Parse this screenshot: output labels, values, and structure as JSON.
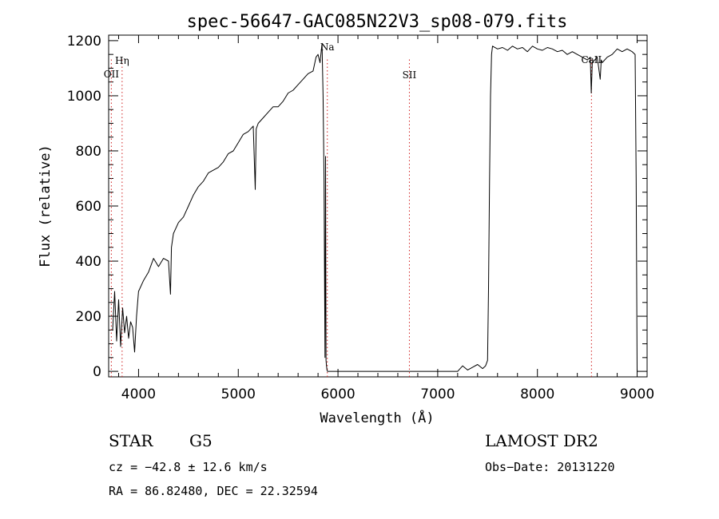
{
  "chart_data": {
    "type": "line",
    "title": "spec-56647-GAC085N22V3_sp08-079.fits",
    "xlabel": "Wavelength (Å)",
    "ylabel": "Flux (relative)",
    "xlim": [
      3700,
      9100
    ],
    "ylim": [
      -20,
      1220
    ],
    "x_ticks": [
      4000,
      5000,
      6000,
      7000,
      8000,
      9000
    ],
    "y_ticks": [
      0,
      200,
      400,
      600,
      800,
      1000,
      1200
    ],
    "x_tick_labels": [
      "4000",
      "5000",
      "6000",
      "7000",
      "8000",
      "9000"
    ],
    "y_tick_labels": [
      "0",
      "200",
      "400",
      "600",
      "800",
      "1000",
      "1200"
    ],
    "grid": false,
    "line_color": "#000000",
    "marker_color": "#d02020",
    "lines": [
      {
        "label": "OII",
        "x": 3727,
        "style": "dotted"
      },
      {
        "label": "Hη",
        "x": 3835,
        "style": "dotted"
      },
      {
        "label": "Na",
        "x": 5893,
        "style": "dotted"
      },
      {
        "label": "SII",
        "x": 6716,
        "style": "dotted"
      },
      {
        "label": "CaII",
        "x": 8542,
        "style": "dotted"
      }
    ],
    "series": [
      {
        "x": [
          3740,
          3760,
          3780,
          3800,
          3820,
          3840,
          3860,
          3880,
          3900,
          3920,
          3940,
          3960,
          3980,
          4000,
          4050,
          4100,
          4150,
          4200,
          4250,
          4300,
          4320,
          4330,
          4350,
          4400,
          4450,
          4500,
          4550,
          4600,
          4650,
          4700,
          4750,
          4800,
          4850,
          4900,
          4950,
          5000,
          5050,
          5100,
          5150,
          5170,
          5180,
          5200,
          5250,
          5300,
          5350,
          5400,
          5450,
          5500,
          5550,
          5600,
          5650,
          5700,
          5750,
          5780,
          5800,
          5820,
          5840,
          5850,
          5860,
          5870,
          5875,
          5880,
          5885,
          5890,
          5895,
          5900,
          5905,
          5910,
          5950,
          6000,
          6500,
          7000,
          7200,
          7250,
          7300,
          7350,
          7400,
          7450,
          7480,
          7500,
          7510,
          7520,
          7530,
          7540,
          7550,
          7600,
          7650,
          7700,
          7750,
          7800,
          7850,
          7900,
          7950,
          8000,
          8050,
          8100,
          8150,
          8200,
          8250,
          8300,
          8350,
          8400,
          8450,
          8500,
          8530,
          8540,
          8550,
          8600,
          8630,
          8640,
          8650,
          8700,
          8750,
          8800,
          8850,
          8900,
          8950,
          8980,
          8990,
          9000
        ],
        "y": [
          150,
          290,
          110,
          260,
          90,
          230,
          140,
          200,
          120,
          180,
          160,
          70,
          200,
          290,
          330,
          360,
          410,
          380,
          410,
          400,
          280,
          450,
          500,
          540,
          560,
          600,
          640,
          670,
          690,
          720,
          730,
          740,
          760,
          790,
          800,
          830,
          860,
          870,
          890,
          660,
          880,
          900,
          920,
          940,
          960,
          960,
          980,
          1010,
          1020,
          1040,
          1060,
          1080,
          1090,
          1140,
          1150,
          1120,
          1190,
          1000,
          700,
          50,
          780,
          40,
          20,
          5,
          0,
          0,
          0,
          0,
          0,
          0,
          0,
          0,
          0,
          20,
          5,
          15,
          25,
          10,
          20,
          40,
          300,
          700,
          1000,
          1150,
          1180,
          1170,
          1175,
          1165,
          1180,
          1170,
          1175,
          1160,
          1180,
          1170,
          1165,
          1175,
          1170,
          1160,
          1165,
          1150,
          1160,
          1150,
          1140,
          1130,
          1140,
          1010,
          1120,
          1140,
          1060,
          1130,
          1120,
          1140,
          1150,
          1170,
          1160,
          1170,
          1160,
          1150,
          700,
          0
        ]
      }
    ]
  },
  "info": {
    "class_label": "STAR",
    "subclass": "G5",
    "survey": "LAMOST DR2",
    "cz": "cz = −42.8 ± 12.6 km/s",
    "obs_date": "Obs−Date: 20131220",
    "coords": "RA =  86.82480, DEC =  22.32594"
  }
}
